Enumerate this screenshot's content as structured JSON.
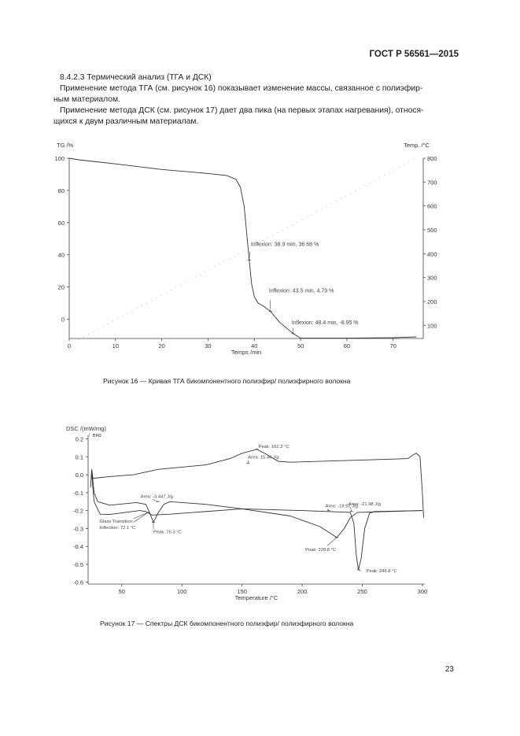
{
  "header": {
    "standard": "ГОСТ Р 56561—2015"
  },
  "body": {
    "section_title": "8.4.2.3 Термический анализ (ТГА и ДСК)",
    "para1_line1": "Применение метода ТГА (см. рисунок 16) показывает изменение массы, связанное с полиэфир-",
    "para1_line2": "ным материалом.",
    "para2_line1": "Применение метода ДСК (см. рисунок 17) дает два пика (на первых этапах нагревания), относя-",
    "para2_line2": "щихся к двум различным материалам."
  },
  "figure16": {
    "caption": "Рисунок 16 — Кривая ТГА бикомпонентного полиэфир/ полиэфирного волокна"
  },
  "figure17": {
    "caption": "Рисунок 17 — Спектры ДСК бикомпонентного полиэфир/ полиэфирного волокна"
  },
  "page_number": "23",
  "chart_data": [
    {
      "type": "line",
      "xlabel": "Temps /min",
      "ylabel": "TG /%",
      "y2label": "Temp. /°C",
      "xlim": [
        0,
        76.5
      ],
      "ylim": [
        -12,
        100
      ],
      "y2lim": [
        45,
        800
      ],
      "xticks": [
        0,
        10,
        20,
        30,
        40,
        50,
        60,
        70
      ],
      "yticks": [
        100,
        80,
        60,
        40,
        20,
        0
      ],
      "y2ticks": [
        800,
        700,
        600,
        500,
        400,
        300,
        200,
        100
      ],
      "grid": false,
      "series": [
        {
          "axis": "left",
          "style": "solid",
          "color": "#333333",
          "x": [
            0,
            2,
            10,
            20,
            30,
            34,
            36,
            37,
            37.8,
            38.3,
            38.9,
            39.4,
            40.0,
            40.8,
            42.0,
            43.5,
            45.5,
            48.4,
            50,
            60,
            70,
            75
          ],
          "y": [
            100,
            99,
            96.5,
            93,
            90.5,
            89.3,
            87,
            82,
            70,
            55,
            36.68,
            22,
            14,
            10,
            8,
            4.79,
            -2,
            -8.95,
            -11.8,
            -11.8,
            -11.5,
            -11
          ]
        },
        {
          "axis": "right",
          "style": "dotted",
          "color": "#bbbbbb",
          "x": [
            2,
            75
          ],
          "y": [
            40,
            800
          ]
        }
      ],
      "annotations": [
        {
          "text": "Inflexion: 38.9 min, 36.68 %",
          "x": 38.9,
          "y": 36.68
        },
        {
          "text": "Inflexion: 43.5 min, 4.79 %",
          "x": 43.5,
          "y": 4.79
        },
        {
          "text": "Inflexion: 48.4 min, -8.95 %",
          "x": 48.4,
          "y": -8.95
        }
      ]
    },
    {
      "type": "line",
      "xlabel": "Temperature /°C",
      "ylabel": "DSC /(mW/mg)",
      "ylabel2": "↑ exo",
      "xlim": [
        22,
        302
      ],
      "ylim": [
        -0.61,
        0.22
      ],
      "xticks": [
        50,
        100,
        150,
        200,
        250,
        300
      ],
      "yticks": [
        0.2,
        0.1,
        0.0,
        -0.1,
        -0.2,
        -0.3,
        -0.4,
        -0.5,
        -0.6
      ],
      "grid": false,
      "series": [
        {
          "color": "#333333",
          "x": [
            24,
            25,
            26,
            40,
            60,
            80,
            120,
            140,
            150,
            162.3,
            170,
            180,
            190,
            288,
            292,
            295,
            298,
            300,
            301
          ],
          "y": [
            -0.07,
            0.03,
            -0.02,
            -0.01,
            0.0,
            0.03,
            0.055,
            0.09,
            0.12,
            0.142,
            0.115,
            0.075,
            0.07,
            0.09,
            0.11,
            0.12,
            0.1,
            -0.1,
            -0.24
          ]
        },
        {
          "color": "#333333",
          "x": [
            25,
            27,
            30,
            40,
            62,
            70,
            73,
            76.3,
            80,
            85,
            90,
            120,
            150,
            200,
            240,
            243,
            245,
            246.8,
            249,
            252,
            256,
            260,
            300
          ],
          "y": [
            0.03,
            -0.1,
            -0.15,
            -0.17,
            -0.155,
            -0.165,
            -0.21,
            -0.265,
            -0.215,
            -0.165,
            -0.15,
            -0.165,
            -0.19,
            -0.2,
            -0.21,
            -0.27,
            -0.45,
            -0.53,
            -0.47,
            -0.3,
            -0.215,
            -0.205,
            -0.2
          ]
        },
        {
          "color": "#333333",
          "x": [
            25,
            27,
            32,
            40,
            65,
            70,
            75,
            90,
            150,
            190,
            215,
            228.8,
            235,
            240,
            246,
            300
          ],
          "y": [
            0.0,
            -0.15,
            -0.22,
            -0.222,
            -0.2,
            -0.205,
            -0.225,
            -0.22,
            -0.19,
            -0.23,
            -0.29,
            -0.35,
            -0.3,
            -0.24,
            -0.21,
            -0.2
          ]
        }
      ],
      "annotations": [
        {
          "text": "Peak: 162.3 °C",
          "x": 162.3,
          "y": 0.142
        },
        {
          "text": "Area: 15.44 J/g",
          "x": 155,
          "y": 0.065
        },
        {
          "text": "Area: -3.447 J/g",
          "x": 80,
          "y": -0.15
        },
        {
          "text": "Glass Transition:",
          "x": 72,
          "y": -0.21
        },
        {
          "text": "Inflection: 72.1 °C",
          "x": 72,
          "y": -0.21
        },
        {
          "text": "Peak: 76.3 °C",
          "x": 76.3,
          "y": -0.265
        },
        {
          "text": "Area: -18.92 J/g",
          "x": 222,
          "y": -0.2
        },
        {
          "text": "Area: -21.98 J/g",
          "x": 241,
          "y": -0.205
        },
        {
          "text": "Peak: 228.8 °C",
          "x": 228.8,
          "y": -0.35
        },
        {
          "text": "Peak: 246.8 °C",
          "x": 246.8,
          "y": -0.53
        }
      ]
    }
  ]
}
